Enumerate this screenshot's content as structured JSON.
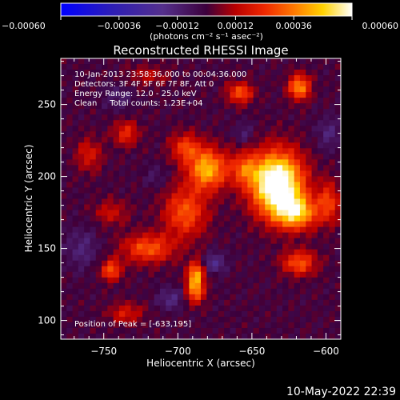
{
  "chart_data": {
    "type": "heatmap",
    "title": "Reconstructed RHESSI Image",
    "xlabel": "Heliocentric X (arcsec)",
    "ylabel": "Heliocentric Y (arcsec)",
    "xlim": [
      -779,
      -590
    ],
    "ylim": [
      87,
      282
    ],
    "x_ticks": [
      -750,
      -700,
      -650,
      -600
    ],
    "x_tick_labels": [
      "−750",
      "−700",
      "−650",
      "−600"
    ],
    "y_ticks": [
      100,
      150,
      200,
      250
    ],
    "y_tick_labels": [
      "100",
      "150",
      "200",
      "250"
    ],
    "colorbar": {
      "range": [
        -0.0006,
        0.0006
      ],
      "ticks": [
        -0.0006,
        -0.00036,
        -0.00012,
        0.00012,
        0.00036,
        0.0006
      ],
      "tick_labels": [
        "−0.00060",
        "−0.00036",
        "−0.00012",
        "0.00012",
        "0.00036",
        "0.00060"
      ],
      "units_label": "(photons cm⁻² s⁻¹ asec⁻²)",
      "colormap": "blue-purple-red-orange-yellow-white"
    },
    "annotations": [
      "10-Jan-2013 23:58:36.000 to 00:04:36.000",
      "Detectors: 3F 4F 5F 6F 7F 8F, Att 0",
      "Energy Range: 12.0 - 25.0 keV",
      "Clean     Total counts: 1.23E+04"
    ],
    "peak_label": "Position of Peak = [-633,195]",
    "peak": {
      "x": -633,
      "y": 195
    },
    "image_grid": {
      "nx": 48,
      "ny": 50
    },
    "sources": [
      {
        "x": -633,
        "y": 195,
        "sx": 12,
        "sy": 15,
        "amp": 0.00075
      },
      {
        "x": -620,
        "y": 175,
        "sx": 10,
        "sy": 8,
        "amp": 0.00045
      },
      {
        "x": -655,
        "y": 205,
        "sx": 7,
        "sy": 8,
        "amp": 0.00025
      },
      {
        "x": -680,
        "y": 205,
        "sx": 9,
        "sy": 10,
        "amp": 0.00045
      },
      {
        "x": -695,
        "y": 220,
        "sx": 7,
        "sy": 7,
        "amp": 0.00025
      },
      {
        "x": -695,
        "y": 175,
        "sx": 10,
        "sy": 12,
        "amp": 0.0003
      },
      {
        "x": -720,
        "y": 150,
        "sx": 12,
        "sy": 7,
        "amp": 0.0003
      },
      {
        "x": -745,
        "y": 135,
        "sx": 5,
        "sy": 5,
        "amp": 0.0003
      },
      {
        "x": -735,
        "y": 230,
        "sx": 6,
        "sy": 6,
        "amp": 0.00022
      },
      {
        "x": -760,
        "y": 215,
        "sx": 6,
        "sy": 8,
        "amp": 0.00018
      },
      {
        "x": -658,
        "y": 258,
        "sx": 6,
        "sy": 5,
        "amp": 0.0003
      },
      {
        "x": -618,
        "y": 262,
        "sx": 5,
        "sy": 6,
        "amp": 0.0004
      },
      {
        "x": -618,
        "y": 140,
        "sx": 8,
        "sy": 6,
        "amp": 0.0003
      },
      {
        "x": -598,
        "y": 182,
        "sx": 5,
        "sy": 10,
        "amp": 0.00025
      },
      {
        "x": -688,
        "y": 130,
        "sx": 4,
        "sy": 7,
        "amp": 0.00045
      },
      {
        "x": -688,
        "y": 118,
        "sx": 4,
        "sy": 5,
        "amp": 0.00025
      },
      {
        "x": -745,
        "y": 175,
        "sx": 8,
        "sy": 6,
        "amp": 0.00015
      },
      {
        "x": -735,
        "y": 105,
        "sx": 8,
        "sy": 5,
        "amp": 0.00018
      },
      {
        "x": -720,
        "y": 270,
        "sx": 10,
        "sy": 5,
        "amp": 0.00012
      },
      {
        "x": -675,
        "y": 140,
        "sx": 5,
        "sy": 5,
        "amp": -0.00018
      },
      {
        "x": -705,
        "y": 115,
        "sx": 6,
        "sy": 5,
        "amp": -0.00015
      },
      {
        "x": -765,
        "y": 150,
        "sx": 8,
        "sy": 10,
        "amp": -0.00012
      },
      {
        "x": -598,
        "y": 230,
        "sx": 6,
        "sy": 8,
        "amp": -0.00012
      },
      {
        "x": -655,
        "y": 230,
        "sx": 5,
        "sy": 5,
        "amp": -0.0001
      },
      {
        "x": -740,
        "y": 255,
        "sx": 7,
        "sy": 6,
        "amp": -0.0001
      },
      {
        "x": -715,
        "y": 200,
        "sx": 5,
        "sy": 5,
        "amp": -8e-05
      }
    ]
  },
  "footer": {
    "timestamp": "10-May-2022 22:39"
  }
}
